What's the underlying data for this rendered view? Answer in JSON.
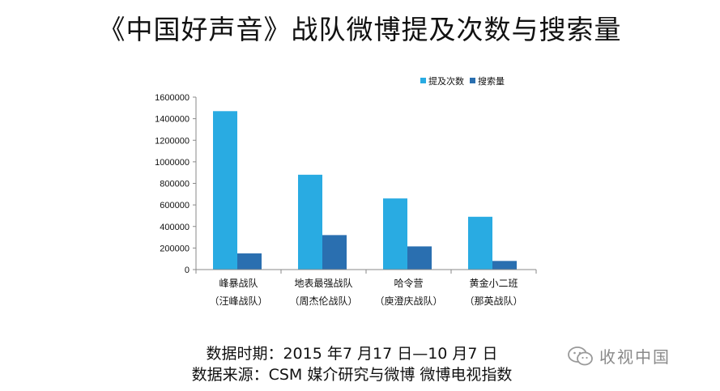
{
  "title": "《中国好声音》战队微博提及次数与搜索量",
  "source_period": "数据时期：2015 年7 月17 日—10 月7 日",
  "source_origin": "数据来源：CSM 媒介研究与微博 微博电视指数",
  "watermark": "收视中国",
  "chart_data": {
    "type": "bar",
    "categories": [
      "峰暴战队",
      "地表最强战队",
      "哈令营",
      "黄金小二班"
    ],
    "subcategories": [
      "（汪峰战队）",
      "（周杰伦战队）",
      "（庾澄庆战队）",
      "（那英战队）"
    ],
    "series": [
      {
        "name": "提及次数",
        "color": "#29abe2",
        "values": [
          1470000,
          880000,
          660000,
          490000
        ]
      },
      {
        "name": "搜索量",
        "color": "#2a6fb0",
        "values": [
          150000,
          320000,
          215000,
          80000
        ]
      }
    ],
    "ylim": [
      0,
      1600000
    ],
    "yticks": [
      "0",
      "200000",
      "400000",
      "600000",
      "800000",
      "1000000",
      "1200000",
      "1400000",
      "1600000"
    ],
    "legend": "top-right",
    "grid": false
  }
}
